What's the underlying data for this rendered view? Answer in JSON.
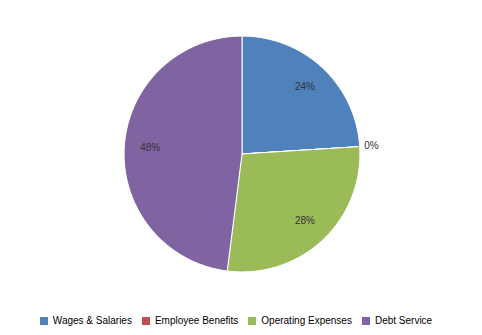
{
  "chart_data": {
    "type": "pie",
    "categories": [
      "Wages & Salaries",
      "Employee Benefits",
      "Operating Expenses",
      "Debt Service"
    ],
    "values": [
      24,
      0,
      28,
      48
    ],
    "value_labels": [
      "24%",
      "0%",
      "28%",
      "48%"
    ],
    "colors": [
      "#4f81bd",
      "#c0504d",
      "#9bbb59",
      "#8064a2"
    ],
    "data_labels": true,
    "legend": "bottom"
  }
}
